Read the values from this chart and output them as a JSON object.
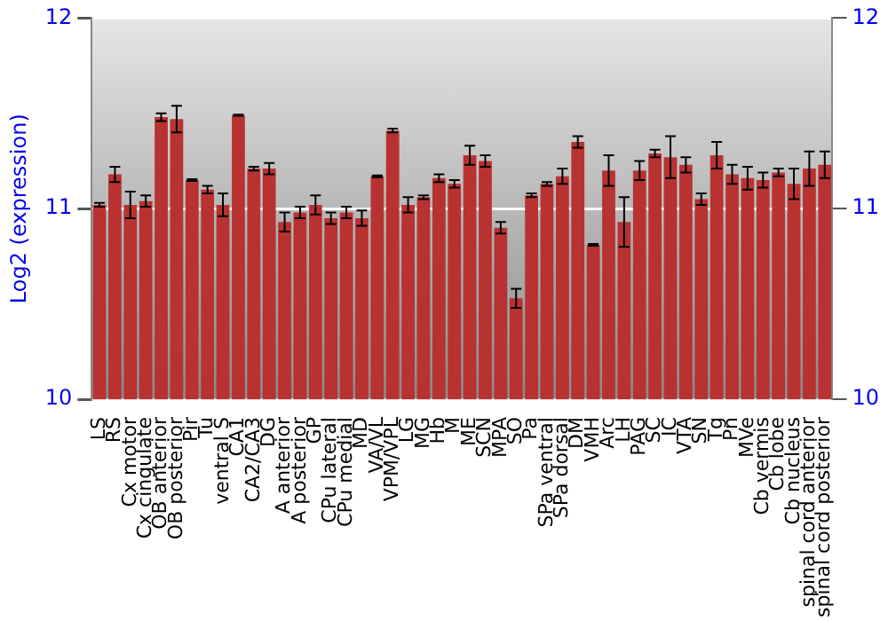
{
  "chart_data": {
    "type": "bar",
    "ylabel": "Log2 (expression)",
    "categories": [
      "LS",
      "RS",
      "Cx motor",
      "Cx cingulate",
      "OB anterior",
      "OB posterior",
      "Pir",
      "Tu",
      "ventral S",
      "CA1",
      "CA2/CA3",
      "DG",
      "A anterior",
      "A posterior",
      "GP",
      "CPu lateral",
      "CPu medial",
      "MD",
      "VA/VL",
      "VPM/VPL",
      "LG",
      "MG",
      "Hb",
      "M",
      "ME",
      "SCN",
      "MPA",
      "SO",
      "Pa",
      "SPa ventral",
      "SPa dorsal",
      "DM",
      "VMH",
      "Arc",
      "LH",
      "PAG",
      "SC",
      "IC",
      "VTA",
      "SN",
      "Tg",
      "Pn",
      "MVe",
      "Cb vermis",
      "Cb lobe",
      "Cb nucleus",
      "spinal cord anterior",
      "spinal cord posterior"
    ],
    "values": [
      11.02,
      11.18,
      11.02,
      11.04,
      11.48,
      11.47,
      11.15,
      11.1,
      11.02,
      11.49,
      11.21,
      11.21,
      10.93,
      10.98,
      11.02,
      10.95,
      10.98,
      10.95,
      11.17,
      11.41,
      11.02,
      11.06,
      11.16,
      11.13,
      11.28,
      11.25,
      10.9,
      10.53,
      11.07,
      11.13,
      11.17,
      11.35,
      10.81,
      11.2,
      10.93,
      11.2,
      11.29,
      11.27,
      11.23,
      11.05,
      11.28,
      11.18,
      11.16,
      11.15,
      11.19,
      11.13,
      11.21,
      11.23
    ],
    "errors": [
      0.01,
      0.04,
      0.07,
      0.03,
      0.02,
      0.07,
      0.005,
      0.02,
      0.06,
      0.003,
      0.01,
      0.03,
      0.05,
      0.03,
      0.05,
      0.03,
      0.03,
      0.04,
      0.005,
      0.01,
      0.04,
      0.01,
      0.02,
      0.02,
      0.05,
      0.03,
      0.03,
      0.05,
      0.01,
      0.01,
      0.04,
      0.03,
      0.005,
      0.08,
      0.13,
      0.05,
      0.02,
      0.11,
      0.04,
      0.03,
      0.07,
      0.05,
      0.06,
      0.04,
      0.02,
      0.08,
      0.09,
      0.07
    ],
    "color": "#b83232",
    "ylim": [
      10,
      12
    ],
    "yticks": [
      10,
      11,
      12
    ],
    "y2lim": [
      10,
      12
    ],
    "y2ticks": [
      10,
      11,
      12
    ],
    "grid": "y",
    "legend": false
  }
}
